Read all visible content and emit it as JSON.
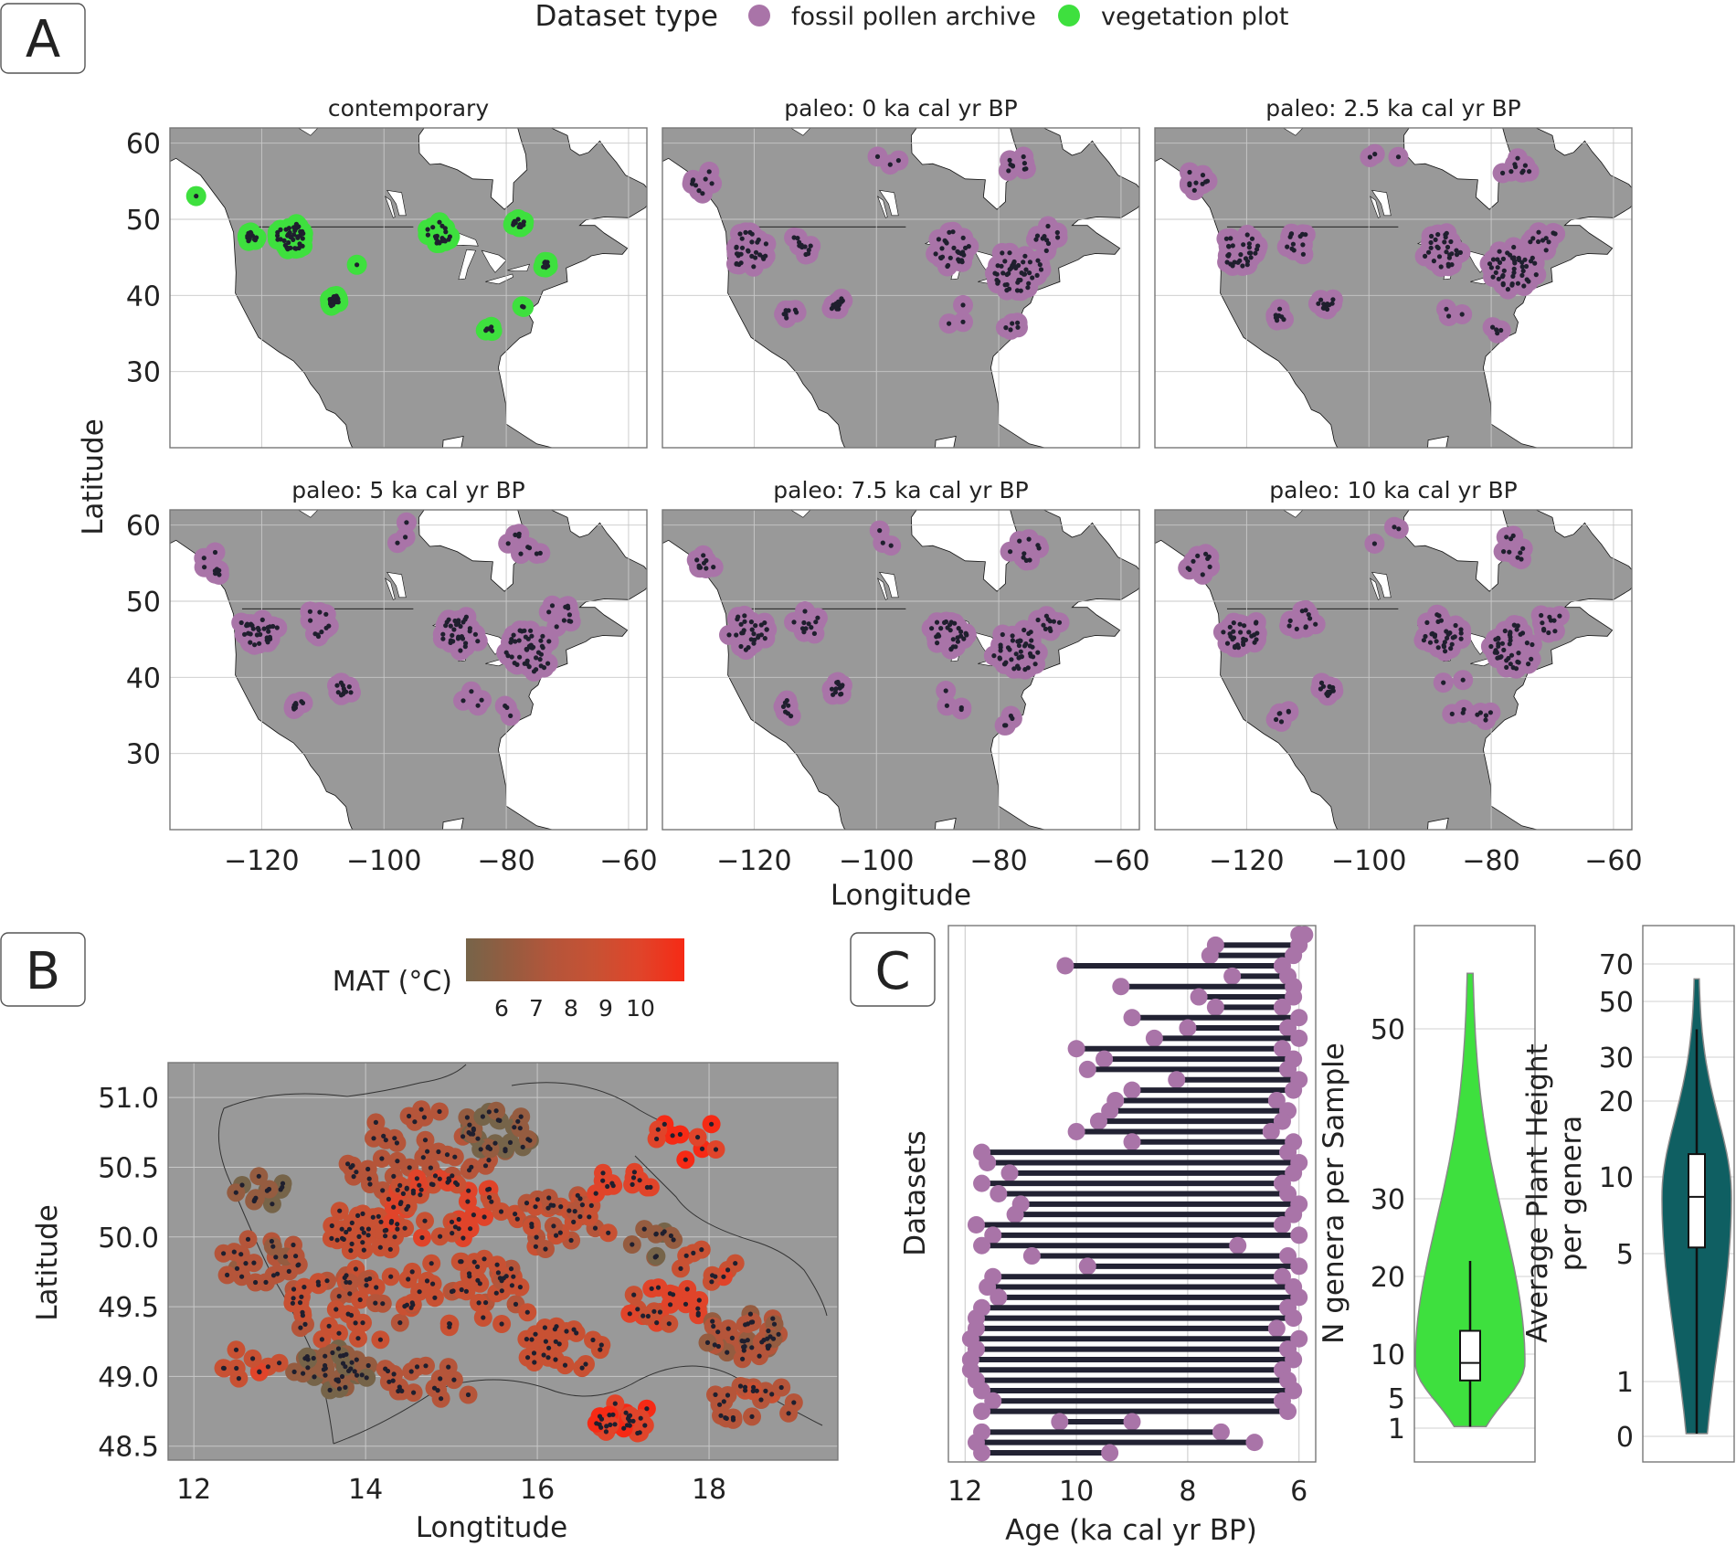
{
  "panels": {
    "a": "A",
    "b": "B",
    "c": "C"
  },
  "colors": {
    "pollen": "#A974A8",
    "veg": "#3EE03E",
    "land": "#999999",
    "point": "#1f1f2e",
    "violin_n": "#3EE03E",
    "violin_h": "#0F5F62",
    "grid": "#c8c8c8"
  },
  "legend": {
    "title": "Dataset type",
    "items": [
      "fossil pollen archive",
      "vegetation plot"
    ]
  },
  "chart_data": [
    {
      "type": "scatter",
      "panel": "A",
      "xlabel": "Longitude",
      "ylabel": "Latitude",
      "xlim": [
        -135,
        -57
      ],
      "ylim": [
        20,
        62
      ],
      "xticks": [
        -120,
        -100,
        -80,
        -60
      ],
      "yticks": [
        30,
        40,
        50,
        60
      ],
      "xtick_labels": [
        "−120",
        "−100",
        "−80",
        "−60"
      ],
      "ytick_labels": [
        "30",
        "40",
        "50",
        "60"
      ],
      "subplots": [
        {
          "title": "contemporary",
          "dataset_type": "vegetation plot",
          "clusters": [
            [
              -130.5,
              53.2,
              0.3,
              1
            ],
            [
              -121.5,
              47.7,
              1.0,
              14
            ],
            [
              -115,
              47.8,
              2.5,
              40
            ],
            [
              -108.3,
              39.3,
              1.0,
              26
            ],
            [
              -104.5,
              44,
              0.3,
              1
            ],
            [
              -91,
              48.2,
              2.0,
              20
            ],
            [
              -78,
              49.6,
              1.0,
              10
            ],
            [
              -73.5,
              44,
              0.6,
              7
            ],
            [
              -77,
              38.5,
              0.4,
              2
            ],
            [
              -82.7,
              35.6,
              0.7,
              6
            ]
          ]
        },
        {
          "title": "paleo: 0 ka cal yr BP",
          "dataset_type": "fossil pollen archive",
          "clusters": [
            [
              -128,
              55,
              2.2,
              9
            ],
            [
              -121,
              46,
              3.2,
              30
            ],
            [
              -111.5,
              47,
              2.5,
              12
            ],
            [
              -106.5,
              38.8,
              1.3,
              14
            ],
            [
              -114,
              37.5,
              1.2,
              8
            ],
            [
              -98,
              58.5,
              2.6,
              3
            ],
            [
              -88,
              46,
              3.2,
              28
            ],
            [
              -77,
              43.2,
              4.0,
              45
            ],
            [
              -72,
              47.5,
              2.2,
              10
            ],
            [
              -76,
              57,
              2.8,
              9
            ],
            [
              -87,
              37,
              3.2,
              3
            ],
            [
              -78,
              36,
              1.2,
              5
            ]
          ]
        },
        {
          "title": "paleo: 2.5 ka cal yr BP",
          "dataset_type": "fossil pollen archive",
          "clusters": [
            [
              -128,
              55,
              2.2,
              9
            ],
            [
              -121,
              46,
              3.2,
              30
            ],
            [
              -111.5,
              47,
              2.5,
              12
            ],
            [
              -107,
              39,
              1.3,
              12
            ],
            [
              -114.5,
              37.5,
              1.2,
              8
            ],
            [
              -97.5,
              58.5,
              2.6,
              3
            ],
            [
              -88,
              46,
              3.2,
              28
            ],
            [
              -76.5,
              43.5,
              4.0,
              45
            ],
            [
              -71.5,
              47.5,
              2.2,
              10
            ],
            [
              -76,
              57,
              2.8,
              9
            ],
            [
              -86,
              37.5,
              3.0,
              3
            ],
            [
              -79,
              35.5,
              1.0,
              4
            ]
          ]
        },
        {
          "title": "paleo: 5 ka cal yr BP",
          "dataset_type": "fossil pollen archive",
          "clusters": [
            [
              -127.5,
              55,
              2.2,
              9
            ],
            [
              -120.5,
              46.5,
              3.2,
              30
            ],
            [
              -111,
              47,
              2.5,
              10
            ],
            [
              -106.5,
              38.5,
              1.3,
              12
            ],
            [
              -114,
              36.5,
              1.2,
              8
            ],
            [
              -97,
              58.5,
              2.6,
              3
            ],
            [
              -87.5,
              45.8,
              3.2,
              30
            ],
            [
              -76.5,
              43.5,
              4.0,
              45
            ],
            [
              -71,
              48,
              2.4,
              10
            ],
            [
              -77,
              57,
              2.8,
              9
            ],
            [
              -85.5,
              37.5,
              2.2,
              4
            ],
            [
              -80,
              35.5,
              1.2,
              3
            ]
          ]
        },
        {
          "title": "paleo: 7.5 ka cal yr BP",
          "dataset_type": "fossil pollen archive",
          "clusters": [
            [
              -128,
              55,
              2.2,
              9
            ],
            [
              -121,
              46,
              3.2,
              28
            ],
            [
              -111.5,
              47,
              2.5,
              11
            ],
            [
              -106.5,
              38.5,
              1.3,
              12
            ],
            [
              -114,
              36,
              1.5,
              7
            ],
            [
              -98,
              58,
              2.4,
              3
            ],
            [
              -88,
              46,
              3.2,
              28
            ],
            [
              -77,
              43.5,
              4.0,
              42
            ],
            [
              -72,
              47.5,
              2.2,
              10
            ],
            [
              -76,
              57,
              2.8,
              9
            ],
            [
              -86,
              37.5,
              3.0,
              4
            ],
            [
              -78.5,
              34.5,
              1.5,
              4
            ]
          ]
        },
        {
          "title": "paleo: 10 ka cal yr BP",
          "dataset_type": "fossil pollen archive",
          "clusters": [
            [
              -128,
              55,
              2.2,
              9
            ],
            [
              -121,
              46,
              3.2,
              28
            ],
            [
              -111,
              47.5,
              2.5,
              10
            ],
            [
              -107,
              38.5,
              1.3,
              12
            ],
            [
              -114,
              35,
              1.5,
              6
            ],
            [
              -97,
              58.5,
              2.5,
              3
            ],
            [
              -88,
              46,
              3.5,
              30
            ],
            [
              -76.5,
              44,
              4.0,
              42
            ],
            [
              -70,
              47.5,
              2.5,
              10
            ],
            [
              -77,
              57,
              2.8,
              9
            ],
            [
              -86,
              37.5,
              3.2,
              5
            ],
            [
              -81,
              35,
              1.5,
              5
            ]
          ]
        }
      ]
    },
    {
      "type": "scatter",
      "panel": "B",
      "xlabel": "Longtitude",
      "ylabel": "Latitude",
      "xlim": [
        11.7,
        19.5
      ],
      "ylim": [
        48.4,
        51.25
      ],
      "xticks": [
        12,
        14,
        16,
        18
      ],
      "yticks": [
        48.5,
        49.0,
        49.5,
        50.0,
        50.5,
        51.0
      ],
      "xtick_labels": [
        "12",
        "14",
        "16",
        "18"
      ],
      "ytick_labels": [
        "48.5",
        "49.0",
        "49.5",
        "50.0",
        "50.5",
        "51.0"
      ],
      "colorbar": {
        "label": "MAT (°C)",
        "ticks": [
          "6",
          "7",
          "8",
          "9",
          "10"
        ],
        "colors": [
          "#766449",
          "#955c40",
          "#b5553a",
          "#c85133",
          "#e0442a",
          "#f62a15"
        ]
      },
      "clusters": [
        [
          12.8,
          50.35,
          0.35,
          12,
          6
        ],
        [
          14.6,
          50.6,
          0.9,
          45,
          7.5
        ],
        [
          15.5,
          50.75,
          0.45,
          28,
          6
        ],
        [
          14.0,
          50.05,
          0.5,
          32,
          8.5
        ],
        [
          14.9,
          50.2,
          0.7,
          40,
          9
        ],
        [
          16.3,
          50.1,
          0.6,
          30,
          8
        ],
        [
          17.0,
          50.35,
          0.4,
          12,
          9.5
        ],
        [
          17.7,
          50.7,
          0.5,
          10,
          10
        ],
        [
          17.3,
          49.95,
          0.35,
          10,
          6.3
        ],
        [
          12.8,
          49.85,
          0.55,
          22,
          7.4
        ],
        [
          13.8,
          49.5,
          0.8,
          40,
          8.2
        ],
        [
          15.2,
          49.6,
          0.8,
          45,
          8.3
        ],
        [
          13.6,
          49.05,
          0.45,
          36,
          6.3
        ],
        [
          14.7,
          48.95,
          0.6,
          20,
          7.5
        ],
        [
          12.6,
          49.1,
          0.4,
          10,
          8.8
        ],
        [
          16.3,
          49.2,
          0.5,
          25,
          8.5
        ],
        [
          17.0,
          48.7,
          0.35,
          26,
          10.2
        ],
        [
          17.5,
          49.5,
          0.45,
          20,
          9.3
        ],
        [
          18.4,
          49.3,
          0.5,
          35,
          7.2
        ],
        [
          18.5,
          48.8,
          0.5,
          22,
          7.8
        ],
        [
          18.0,
          49.8,
          0.35,
          10,
          8.8
        ]
      ]
    },
    {
      "type": "bar",
      "panel": "C-ages",
      "orientation": "horizontal-ranges",
      "xlabel": "Age (ka cal yr BP)",
      "ylabel": "Datasets",
      "xlim": [
        12.3,
        5.7
      ],
      "xticks": [
        12,
        10,
        8,
        6
      ],
      "xtick_labels": [
        "12",
        "10",
        "8",
        "6"
      ],
      "ranges": [
        [
          5.9,
          6.0
        ],
        [
          7.5,
          6.0
        ],
        [
          7.6,
          6.1
        ],
        [
          10.2,
          6.3
        ],
        [
          7.2,
          6.2
        ],
        [
          9.2,
          6.1
        ],
        [
          7.8,
          6.1
        ],
        [
          7.5,
          6.3
        ],
        [
          9.0,
          6.0
        ],
        [
          8.0,
          6.2
        ],
        [
          8.6,
          6.0
        ],
        [
          10.0,
          6.3
        ],
        [
          9.5,
          6.1
        ],
        [
          9.8,
          6.2
        ],
        [
          8.2,
          6.0
        ],
        [
          9.0,
          6.1
        ],
        [
          9.3,
          6.4
        ],
        [
          9.4,
          6.2
        ],
        [
          9.6,
          6.3
        ],
        [
          10.0,
          6.5
        ],
        [
          9.0,
          6.1
        ],
        [
          11.7,
          6.2
        ],
        [
          11.6,
          6.0
        ],
        [
          11.2,
          6.1
        ],
        [
          11.7,
          6.3
        ],
        [
          11.4,
          6.2
        ],
        [
          11.0,
          6.0
        ],
        [
          11.1,
          6.1
        ],
        [
          11.8,
          6.3
        ],
        [
          11.5,
          6.0
        ],
        [
          11.7,
          7.1
        ],
        [
          10.8,
          6.2
        ],
        [
          9.8,
          6.0
        ],
        [
          11.5,
          6.3
        ],
        [
          11.6,
          6.1
        ],
        [
          11.4,
          6.0
        ],
        [
          11.7,
          6.2
        ],
        [
          11.8,
          6.1
        ],
        [
          11.8,
          6.4
        ],
        [
          11.9,
          6.0
        ],
        [
          11.8,
          6.2
        ],
        [
          11.9,
          6.1
        ],
        [
          11.9,
          6.3
        ],
        [
          11.8,
          6.2
        ],
        [
          11.7,
          6.1
        ],
        [
          11.5,
          6.3
        ],
        [
          11.7,
          6.2
        ],
        [
          10.3,
          9.0
        ],
        [
          11.7,
          7.4
        ],
        [
          11.8,
          6.8
        ],
        [
          11.7,
          9.4
        ]
      ]
    },
    {
      "type": "violin",
      "panel": "C-genera",
      "ylabel": "N genera per Sample",
      "yticks": [
        1,
        5,
        10,
        20,
        30,
        50
      ],
      "ytick_labels": [
        "1",
        "5",
        "10",
        "20",
        "30",
        "50"
      ],
      "ylim": [
        0,
        62
      ],
      "min": 2,
      "q1": 7,
      "median": 9,
      "q3": 13,
      "max": 57,
      "whisker_high": 22
    },
    {
      "type": "violin",
      "panel": "C-height",
      "ylabel": "Average Plant Height per genera",
      "yticks": [
        0,
        1,
        5,
        10,
        20,
        30,
        50,
        70
      ],
      "ytick_labels": [
        "0",
        "1",
        "5",
        "10",
        "20",
        "30",
        "50",
        "70"
      ],
      "scale": "symlog",
      "min": 0.2,
      "q1": 5.4,
      "median": 8.7,
      "q3": 13,
      "max": 62,
      "whisker_high": 40
    }
  ]
}
